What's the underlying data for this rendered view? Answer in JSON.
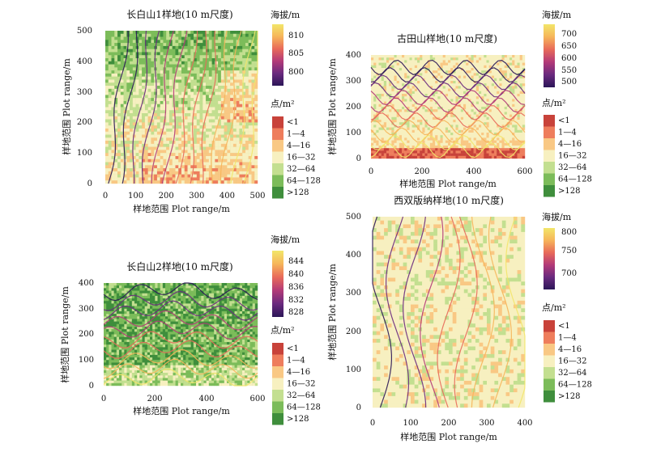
{
  "chart_data": [
    {
      "type": "heatmap",
      "id": "cbs1",
      "title": "长白山1样地(10 m尺度)",
      "xlabel": "样地范围 Plot range/m",
      "ylabel": "样地范围 Plot range/m",
      "xlim": [
        0,
        500
      ],
      "ylim": [
        0,
        500
      ],
      "xticks": [
        "0",
        "100",
        "200",
        "300",
        "400",
        "500"
      ],
      "yticks": [
        "0",
        "100",
        "200",
        "300",
        "400",
        "500"
      ],
      "elevation_legend": {
        "title": "海拔/m",
        "range": [
          797,
          813
        ],
        "ticks": [
          "810",
          "805",
          "800"
        ]
      },
      "density_legend": {
        "title": "点/m²",
        "classes": [
          "<1",
          "1—4",
          "4—16",
          "16—32",
          "32—64",
          "64—128",
          ">128"
        ]
      },
      "contours": 13
    },
    {
      "type": "heatmap",
      "id": "gts",
      "title": "古田山样地(10 m尺度)",
      "xlabel": "样地范围 Plot range/m",
      "ylabel": "样地范围 Plot range/m",
      "xlim": [
        0,
        600
      ],
      "ylim": [
        0,
        400
      ],
      "xticks": [
        "0",
        "200",
        "400",
        "600"
      ],
      "yticks": [
        "0",
        "100",
        "200",
        "300",
        "400"
      ],
      "elevation_legend": {
        "title": "海拔/m",
        "range": [
          480,
          720
        ],
        "ticks": [
          "700",
          "650",
          "600",
          "550",
          "500"
        ]
      },
      "density_legend": {
        "title": "点/m²",
        "classes": [
          "<1",
          "1—4",
          "4—16",
          "16—32",
          "32—64",
          "64—128",
          ">128"
        ]
      },
      "contours": 12
    },
    {
      "type": "heatmap",
      "id": "cbs2",
      "title": "长白山2样地(10 m尺度)",
      "xlabel": "样地范围 Plot range/m",
      "ylabel": "样地范围 Plot range/m",
      "xlim": [
        0,
        600
      ],
      "ylim": [
        0,
        400
      ],
      "xticks": [
        "0",
        "200",
        "400",
        "600"
      ],
      "yticks": [
        "0",
        "100",
        "200",
        "300",
        "400"
      ],
      "elevation_legend": {
        "title": "海拔/m",
        "range": [
          826,
          846
        ],
        "ticks": [
          "844",
          "840",
          "836",
          "832",
          "828"
        ]
      },
      "density_legend": {
        "title": "点/m²",
        "classes": [
          "<1",
          "1—4",
          "4—16",
          "16—32",
          "32—64",
          "64—128",
          ">128"
        ]
      },
      "contours": 10
    },
    {
      "type": "heatmap",
      "id": "xsbn",
      "title": "西双版纳样地(10 m尺度)",
      "xlabel": "样地范围 Plot range/m",
      "ylabel": "样地范围 Plot range/m",
      "xlim": [
        0,
        400
      ],
      "ylim": [
        0,
        500
      ],
      "xticks": [
        "0",
        "100",
        "200",
        "300",
        "400"
      ],
      "yticks": [
        "0",
        "100",
        "200",
        "300",
        "400",
        "500"
      ],
      "elevation_legend": {
        "title": "海拔/m",
        "range": [
          680,
          810
        ],
        "ticks": [
          "800",
          "750",
          "700"
        ]
      },
      "density_legend": {
        "title": "点/m²",
        "classes": [
          "<1",
          "1—4",
          "4—16",
          "16—32",
          "32—64",
          "64—128",
          ">128"
        ]
      },
      "contours": 9
    }
  ],
  "density_colors": [
    "#c8423a",
    "#ee7d5c",
    "#f9c884",
    "#f7f0c0",
    "#c3df90",
    "#7cbc5a",
    "#3f8e3c"
  ],
  "elevation_gradient": [
    "#2b1657",
    "#6a2a7e",
    "#b23a78",
    "#e86a5a",
    "#f6b55a",
    "#f2e66a"
  ]
}
